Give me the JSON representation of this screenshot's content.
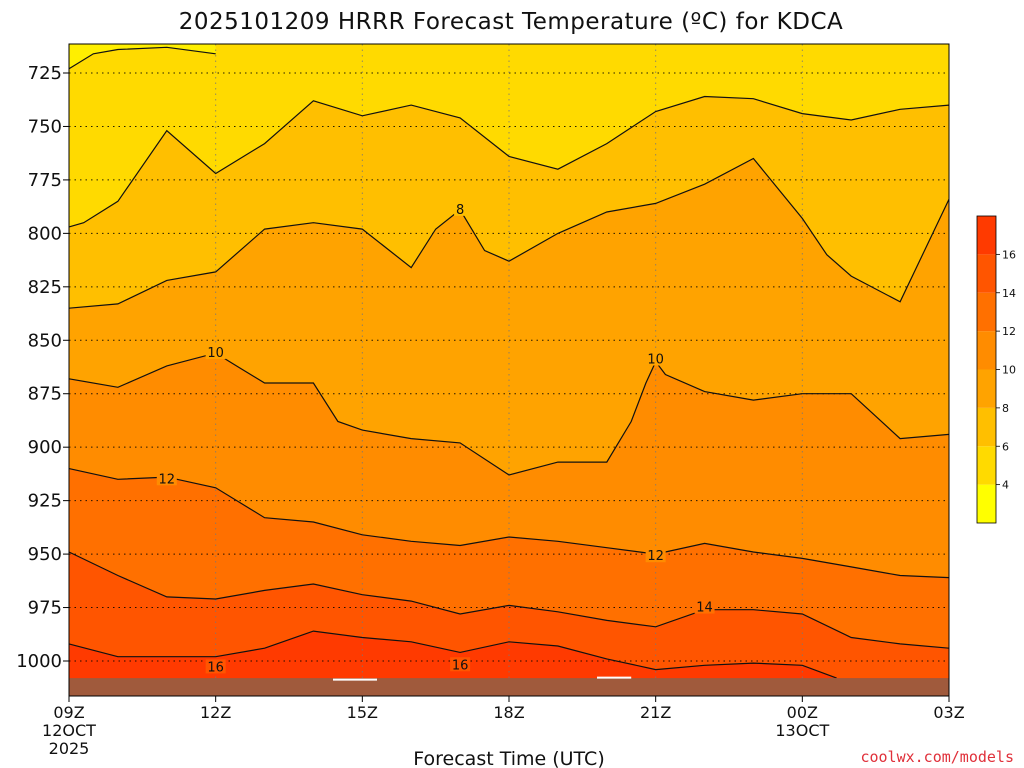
{
  "title": "2025101209 HRRR Forecast Temperature (ºC) for KDCA",
  "credit": "coolwx.com/models",
  "chart_data": {
    "type": "heatmap",
    "subtype": "filled-contour",
    "title": "2025101209 HRRR Forecast Temperature (ºC) for KDCA",
    "xlabel": "Forecast Time (UTC)",
    "ylabel": "",
    "y_scale": "pressure (hPa), increasing downward",
    "grid": "dotted",
    "x_ticks": [
      {
        "label": "09Z",
        "sub": [
          "12OCT",
          "2025"
        ],
        "hour": 0
      },
      {
        "label": "12Z",
        "sub": [],
        "hour": 3
      },
      {
        "label": "15Z",
        "sub": [],
        "hour": 6
      },
      {
        "label": "18Z",
        "sub": [],
        "hour": 9
      },
      {
        "label": "21Z",
        "sub": [],
        "hour": 12
      },
      {
        "label": "00Z",
        "sub": [
          "13OCT"
        ],
        "hour": 15
      },
      {
        "label": "03Z",
        "sub": [],
        "hour": 18
      }
    ],
    "y_ticks": [
      "725",
      "750",
      "775",
      "800",
      "825",
      "850",
      "875",
      "900",
      "925",
      "950",
      "975",
      "1000"
    ],
    "xlim": [
      0,
      18
    ],
    "ylim": [
      1015,
      713
    ],
    "surface_pressure_hPa": 1008,
    "colorbar": {
      "levels": [
        4,
        6,
        8,
        10,
        12,
        14,
        16
      ],
      "colors": [
        "#ffff00",
        "#ffda00",
        "#ffbf00",
        "#ffa300",
        "#ff8c00",
        "#ff7000",
        "#ff5500",
        "#ff3a00"
      ]
    },
    "contour_labels": [
      {
        "text": "8",
        "hour": 8.0,
        "p": 789
      },
      {
        "text": "10",
        "hour": 3.0,
        "p": 856
      },
      {
        "text": "10",
        "hour": 12.0,
        "p": 859
      },
      {
        "text": "12",
        "hour": 2.0,
        "p": 915
      },
      {
        "text": "12",
        "hour": 12.0,
        "p": 951
      },
      {
        "text": "14",
        "hour": 13.0,
        "p": 975
      },
      {
        "text": "16",
        "hour": 3.0,
        "p": 1003
      },
      {
        "text": "16",
        "hour": 8.0,
        "p": 1002
      }
    ],
    "contours": [
      {
        "level": 6,
        "hours": [
          0,
          0.5,
          1,
          2,
          3
        ],
        "p": [
          723,
          716,
          714,
          713,
          716
        ]
      },
      {
        "level": 6,
        "hours": [
          0,
          0.3,
          1,
          2,
          3,
          4,
          5,
          6,
          7,
          8,
          9,
          10,
          11,
          12,
          13,
          14,
          15,
          16,
          17,
          18
        ],
        "p": [
          797,
          795,
          785,
          752,
          772,
          758,
          738,
          745,
          740,
          746,
          764,
          770,
          758,
          743,
          736,
          737,
          744,
          747,
          742,
          740
        ]
      },
      {
        "level": 8,
        "hours": [
          0,
          1,
          2,
          3,
          4,
          5,
          6,
          7,
          7.5,
          8,
          8.5,
          9,
          10,
          11,
          12,
          13,
          14,
          15,
          15.5,
          16,
          17,
          18
        ],
        "p": [
          835,
          833,
          822,
          818,
          798,
          795,
          798,
          816,
          798,
          789,
          808,
          813,
          800,
          790,
          786,
          777,
          765,
          793,
          810,
          820,
          832,
          784
        ]
      },
      {
        "level": 10,
        "hours": [
          0,
          1,
          2,
          3,
          3.5,
          4,
          5,
          5.5,
          6,
          7,
          8,
          9,
          10,
          11,
          11.5,
          11.8,
          12,
          12.2,
          13,
          14,
          15,
          16,
          17,
          18
        ],
        "p": [
          868,
          872,
          862,
          856,
          863,
          870,
          870,
          888,
          892,
          896,
          898,
          913,
          907,
          907,
          888,
          870,
          860,
          866,
          874,
          878,
          875,
          875,
          896,
          894
        ]
      },
      {
        "level": 12,
        "hours": [
          0,
          1,
          2,
          3,
          4,
          5,
          6,
          7,
          8,
          9,
          10,
          11,
          12,
          13,
          14,
          15,
          16,
          17,
          18
        ],
        "p": [
          910,
          915,
          914,
          919,
          933,
          935,
          941,
          944,
          946,
          942,
          944,
          947,
          950,
          945,
          949,
          952,
          956,
          960,
          961
        ]
      },
      {
        "level": 14,
        "hours": [
          0,
          1,
          2,
          3,
          4,
          5,
          6,
          7,
          8,
          9,
          10,
          11,
          12,
          13,
          14,
          15,
          16,
          17,
          18
        ],
        "p": [
          949,
          960,
          970,
          971,
          967,
          964,
          969,
          972,
          978,
          974,
          977,
          981,
          984,
          976,
          976,
          978,
          989,
          992,
          994
        ]
      },
      {
        "level": 16,
        "hours": [
          0,
          1,
          2,
          3,
          4,
          5,
          6,
          7,
          8,
          9,
          10,
          11,
          12,
          13,
          14,
          15,
          15.7
        ],
        "p": [
          992,
          998,
          998,
          998,
          994,
          986,
          989,
          991,
          996,
          991,
          993,
          999,
          1004,
          1002,
          1001,
          1002,
          1008
        ]
      }
    ]
  }
}
